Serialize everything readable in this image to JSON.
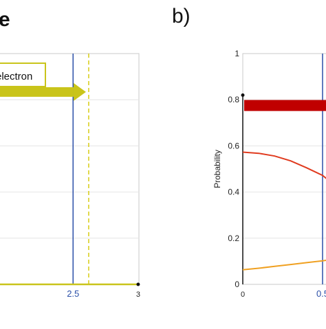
{
  "chart_data": [
    {
      "type": "line",
      "panel_label": "",
      "title": "e",
      "xlim": [
        0,
        3
      ],
      "ylim": [
        0,
        1
      ],
      "x_ticks": [
        "2.5",
        "3"
      ],
      "x_tick_values": [
        2.5,
        3
      ],
      "grid": true,
      "legend": {
        "text": "electron",
        "position": "top-left"
      },
      "vertical_lines": [
        {
          "x": 2.5,
          "style": "solid",
          "color": "#2b4fa8"
        },
        {
          "x": 2.62,
          "style": "dashed",
          "color": "#d8cc14"
        }
      ],
      "arrow": {
        "color": "#c9c41a",
        "x_end": 2.62,
        "y": 0.78
      },
      "series": [
        {
          "color": "#c9c41a",
          "x": [
            0,
            0.3,
            0.6,
            1.0,
            2.0,
            3.0
          ],
          "y": [
            0.012,
            0.006,
            0.003,
            0.001,
            0.0,
            0.0
          ]
        }
      ],
      "endpoint_marker": {
        "x": 3,
        "y": 0
      }
    },
    {
      "type": "line",
      "panel_label": "b)",
      "title": "",
      "ylabel": "Probability",
      "xlim": [
        0,
        0.6
      ],
      "ylim": [
        0,
        1
      ],
      "y_ticks": [
        "0",
        "0.2",
        "0.4",
        "0.6",
        "0.8",
        "1"
      ],
      "y_tick_values": [
        0,
        0.2,
        0.4,
        0.6,
        0.8,
        1
      ],
      "x_ticks": [
        "0",
        "0.5"
      ],
      "x_tick_values": [
        0,
        0.5
      ],
      "grid": true,
      "vertical_lines": [
        {
          "x": 0.5,
          "style": "solid",
          "color": "#2b4fa8"
        }
      ],
      "bar": {
        "color": "#c00000",
        "y": 0.775
      },
      "start_marker": {
        "x": 0,
        "y": 0.82
      },
      "series": [
        {
          "color": "#e03a1e",
          "x": [
            0,
            0.1,
            0.2,
            0.3,
            0.4,
            0.5,
            0.53
          ],
          "y": [
            0.573,
            0.568,
            0.556,
            0.535,
            0.505,
            0.472,
            0.455
          ]
        },
        {
          "color": "#f0a020",
          "x": [
            0,
            0.1,
            0.2,
            0.3,
            0.4,
            0.5,
            0.53
          ],
          "y": [
            0.063,
            0.07,
            0.078,
            0.086,
            0.094,
            0.102,
            0.105
          ]
        }
      ]
    }
  ]
}
